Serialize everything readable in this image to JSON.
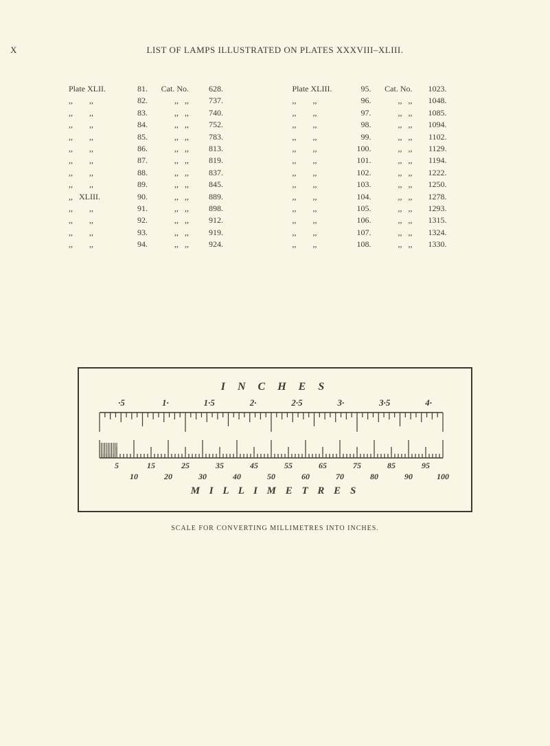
{
  "header": {
    "roman": "X",
    "title": "LIST OF LAMPS ILLUSTRATED ON PLATES XXXVIII–XLIII."
  },
  "leftTable": {
    "plateLabel": "Plate XLII.",
    "catLabel": "Cat. No.",
    "rows": [
      {
        "plate": "Plate XLII.",
        "n": "81.",
        "catPrefix": "Cat. No.",
        "cat": "628."
      },
      {
        "plate": ",,        ,,",
        "n": "82.",
        "catPrefix": ",,   ,,",
        "cat": "737."
      },
      {
        "plate": ",,        ,,",
        "n": "83.",
        "catPrefix": ",,   ,,",
        "cat": "740."
      },
      {
        "plate": ",,        ,,",
        "n": "84.",
        "catPrefix": ",,   ,,",
        "cat": "752."
      },
      {
        "plate": ",,        ,,",
        "n": "85.",
        "catPrefix": ",,   ,,",
        "cat": "783."
      },
      {
        "plate": ",,        ,,",
        "n": "86.",
        "catPrefix": ",,   ,,",
        "cat": "813."
      },
      {
        "plate": ",,        ,,",
        "n": "87.",
        "catPrefix": ",,   ,,",
        "cat": "819."
      },
      {
        "plate": ",,        ,,",
        "n": "88.",
        "catPrefix": ",,   ,,",
        "cat": "837."
      },
      {
        "plate": ",,        ,,",
        "n": "89.",
        "catPrefix": ",,   ,,",
        "cat": "845."
      },
      {
        "plate": ",,   XLIII.",
        "n": "90.",
        "catPrefix": ",,   ,,",
        "cat": "889."
      },
      {
        "plate": ",,        ,,",
        "n": "91.",
        "catPrefix": ",,   ,,",
        "cat": "898."
      },
      {
        "plate": ",,        ,,",
        "n": "92.",
        "catPrefix": ",,   ,,",
        "cat": "912."
      },
      {
        "plate": ",,        ,,",
        "n": "93.",
        "catPrefix": ",,   ,,",
        "cat": "919."
      },
      {
        "plate": ",,        ,,",
        "n": "94.",
        "catPrefix": ",,   ,,",
        "cat": "924."
      }
    ]
  },
  "rightTable": {
    "rows": [
      {
        "plate": "Plate XLIII.",
        "n": "95.",
        "catPrefix": "Cat. No.",
        "cat": "1023."
      },
      {
        "plate": ",,        ,,",
        "n": "96.",
        "catPrefix": ",,   ,,",
        "cat": "1048."
      },
      {
        "plate": ",,        ,,",
        "n": "97.",
        "catPrefix": ",,   ,,",
        "cat": "1085."
      },
      {
        "plate": ",,        ,,",
        "n": "98.",
        "catPrefix": ",,   ,,",
        "cat": "1094."
      },
      {
        "plate": ",,        ,,",
        "n": "99.",
        "catPrefix": ",,   ,,",
        "cat": "1102."
      },
      {
        "plate": ",,        ,,",
        "n": "100.",
        "catPrefix": ",,   ,,",
        "cat": "1129."
      },
      {
        "plate": ",,        ,,",
        "n": "101.",
        "catPrefix": ",,   ,,",
        "cat": "1194."
      },
      {
        "plate": ",,        ,,",
        "n": "102.",
        "catPrefix": ",,   ,,",
        "cat": "1222."
      },
      {
        "plate": ",,        ,,",
        "n": "103.",
        "catPrefix": ",,   ,,",
        "cat": "1250."
      },
      {
        "plate": ",,        ,,",
        "n": "104.",
        "catPrefix": ",,   ,,",
        "cat": "1278."
      },
      {
        "plate": ",,        ,,",
        "n": "105.",
        "catPrefix": ",,   ,,",
        "cat": "1293."
      },
      {
        "plate": ",,        ,,",
        "n": "106.",
        "catPrefix": ",,   ,,",
        "cat": "1315."
      },
      {
        "plate": ",,        ,,",
        "n": "107.",
        "catPrefix": ",,   ,,",
        "cat": "1324."
      },
      {
        "plate": ",,        ,,",
        "n": "108.",
        "catPrefix": ",,   ,,",
        "cat": "1330."
      }
    ]
  },
  "ruler": {
    "titleTop": "I N C H E S",
    "titleBottom": "M I L L I M E T R E S",
    "caption": "SCALE FOR CONVERTING MILLIMETRES INTO INCHES.",
    "inchLabels": [
      "·5",
      "1·",
      "1·5",
      "2·",
      "2·5",
      "3·",
      "3·5",
      "4·"
    ],
    "mmMajor": [
      "5",
      "15",
      "25",
      "35",
      "45",
      "55",
      "65",
      "75",
      "85",
      "95"
    ],
    "mmMinor": [
      "10",
      "20",
      "30",
      "40",
      "50",
      "60",
      "70",
      "80",
      "90",
      "100"
    ],
    "widthPx": 510,
    "inchesTotalMM": 101.6,
    "strokeColor": "#3b3a2e",
    "bgColor": "#f9f6e6"
  }
}
